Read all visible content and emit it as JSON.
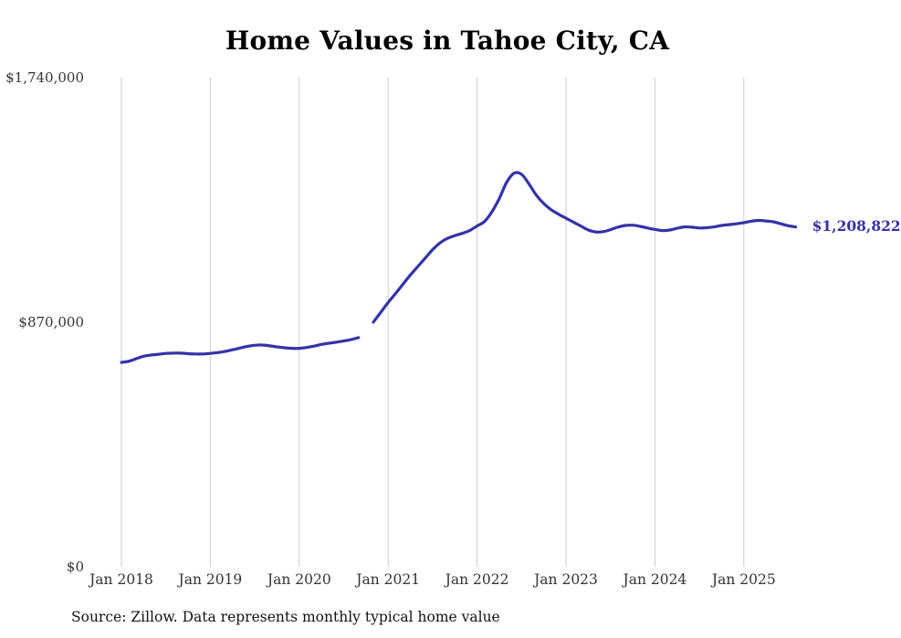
{
  "chart_data": {
    "type": "line",
    "title": "Home Values in Tahoe City, CA",
    "source_note": "Source: Zillow. Data represents monthly typical home value",
    "x_unit": "month",
    "x_start": "2018-01",
    "x_tick_labels": [
      "Jan 2018",
      "Jan 2019",
      "Jan 2020",
      "Jan 2021",
      "Jan 2022",
      "Jan 2023",
      "Jan 2024",
      "Jan 2025"
    ],
    "y_ticks": [
      {
        "value": 0,
        "label": "$0"
      },
      {
        "value": 870000,
        "label": "$870,000"
      },
      {
        "value": 1740000,
        "label": "$1,740,000"
      }
    ],
    "ylim": [
      0,
      1740000
    ],
    "grid": "vertical-only",
    "legend": "none",
    "line_color": "#3432a8",
    "end_label": "$1,208,822",
    "end_value": 1208822,
    "series": [
      {
        "name": "Monthly typical home value",
        "values": [
          727000,
          731000,
          740000,
          749000,
          753000,
          756000,
          759000,
          760000,
          760000,
          758000,
          757000,
          757000,
          759000,
          762000,
          766000,
          772000,
          778000,
          784000,
          788000,
          789000,
          786000,
          782000,
          779000,
          777000,
          777000,
          780000,
          785000,
          791000,
          795000,
          799000,
          803000,
          808000,
          815000,
          null,
          870000,
          905000,
          940000,
          972000,
          1005000,
          1038000,
          1068000,
          1098000,
          1128000,
          1152000,
          1168000,
          1178000,
          1186000,
          1196000,
          1212000,
          1228000,
          1262000,
          1310000,
          1368000,
          1400000,
          1396000,
          1362000,
          1322000,
          1292000,
          1270000,
          1254000,
          1240000,
          1226000,
          1212000,
          1198000,
          1191000,
          1192000,
          1199000,
          1208000,
          1214000,
          1215000,
          1211000,
          1205000,
          1200000,
          1196000,
          1198000,
          1204000,
          1209000,
          1208000,
          1205000,
          1206000,
          1209000,
          1214000,
          1217000,
          1220000,
          1224000,
          1229000,
          1232000,
          1230000,
          1227000,
          1220000,
          1213000,
          1208822
        ]
      }
    ]
  }
}
